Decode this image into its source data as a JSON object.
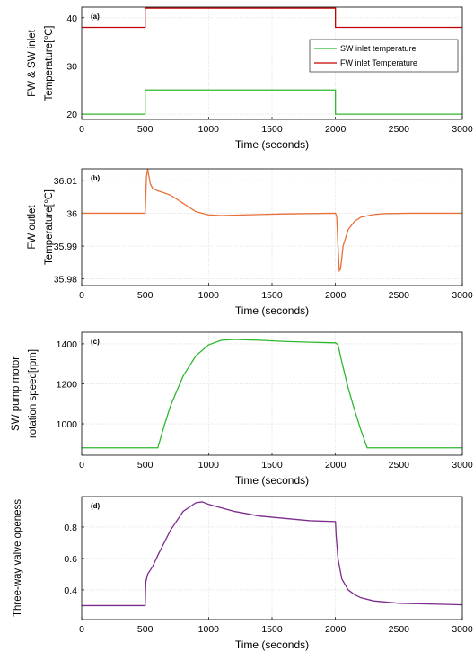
{
  "chart_data": [
    {
      "type": "line",
      "annotation": "(a)",
      "xlabel": "Time (seconds)",
      "ylabel": [
        "FW & SW inlet",
        "Temperature[℃]"
      ],
      "x": [
        0,
        500,
        500,
        2000,
        2000,
        3000
      ],
      "series": [
        {
          "name": "SW inlet temperature",
          "color": "#2db82d",
          "values": [
            20,
            20,
            25,
            25,
            20,
            20
          ]
        },
        {
          "name": "FW inlet Temperature",
          "color": "#c00000",
          "values": [
            38,
            38,
            42,
            42,
            38,
            38
          ]
        }
      ],
      "xlim": [
        0,
        3000
      ],
      "xticks": [
        0,
        500,
        1000,
        1500,
        2000,
        2500,
        3000
      ],
      "ylim": [
        18.9,
        42.2
      ],
      "yticks": [
        20,
        30,
        40
      ],
      "grid": true,
      "legend": "upper-right"
    },
    {
      "type": "line",
      "annotation": "(b)",
      "xlabel": "Time (seconds)",
      "ylabel": [
        "FW outlet",
        "Temperature[℃]"
      ],
      "x": [
        0,
        500,
        505,
        510,
        520,
        540,
        560,
        600,
        650,
        700,
        800,
        900,
        1000,
        1100,
        1200,
        1400,
        1600,
        1800,
        2000,
        2010,
        2020,
        2030,
        2040,
        2060,
        2100,
        2150,
        2200,
        2300,
        2400,
        2600,
        3000
      ],
      "series": [
        {
          "color": "#e8703a",
          "values": [
            36,
            36,
            36.005,
            36.011,
            36.0135,
            36.009,
            36.0075,
            36.0068,
            36.0062,
            36.0055,
            36.003,
            36.0005,
            35.9995,
            35.9993,
            35.9994,
            35.9996,
            35.9998,
            35.9999,
            36,
            35.999,
            35.99,
            35.9825,
            35.983,
            35.99,
            35.995,
            35.9975,
            35.9988,
            35.9996,
            35.9999,
            36,
            36
          ]
        }
      ],
      "xlim": [
        0,
        3000
      ],
      "xticks": [
        0,
        500,
        1000,
        1500,
        2000,
        2500,
        3000
      ],
      "ylim": [
        35.978,
        36.0135
      ],
      "yticks": [
        35.98,
        35.99,
        36,
        36.01
      ],
      "grid": true
    },
    {
      "type": "line",
      "annotation": "(c)",
      "xlabel": "Time (seconds)",
      "ylabel": [
        "SW pump motor",
        "rotation  speed[rpm]"
      ],
      "x": [
        0,
        600,
        650,
        700,
        800,
        900,
        1000,
        1100,
        1200,
        1400,
        1600,
        1800,
        2000,
        2020,
        2050,
        2100,
        2150,
        2200,
        2250,
        3000
      ],
      "series": [
        {
          "color": "#2db82d",
          "values": [
            880,
            880,
            990,
            1090,
            1240,
            1340,
            1395,
            1418,
            1422,
            1418,
            1412,
            1408,
            1405,
            1395,
            1310,
            1180,
            1070,
            970,
            880,
            880
          ]
        }
      ],
      "xlim": [
        0,
        3000
      ],
      "xticks": [
        0,
        500,
        1000,
        1500,
        2000,
        2500,
        3000
      ],
      "ylim": [
        843,
        1458
      ],
      "yticks": [
        1000,
        1200,
        1400
      ],
      "grid": true
    },
    {
      "type": "line",
      "annotation": "(d)",
      "xlabel": "Time (seconds)",
      "ylabel": [
        "Three-way valve openess"
      ],
      "x": [
        0,
        500,
        505,
        520,
        560,
        600,
        700,
        800,
        900,
        950,
        1000,
        1200,
        1400,
        1600,
        1800,
        2000,
        2005,
        2020,
        2050,
        2100,
        2150,
        2200,
        2300,
        2500,
        3000
      ],
      "series": [
        {
          "color": "#7b2c8c",
          "values": [
            0.3,
            0.3,
            0.45,
            0.5,
            0.55,
            0.62,
            0.78,
            0.9,
            0.955,
            0.96,
            0.945,
            0.9,
            0.87,
            0.855,
            0.84,
            0.835,
            0.75,
            0.6,
            0.47,
            0.4,
            0.37,
            0.35,
            0.33,
            0.315,
            0.305
          ]
        }
      ],
      "xlim": [
        0,
        3000
      ],
      "xticks": [
        0,
        500,
        1000,
        1500,
        2000,
        2500,
        3000
      ],
      "ylim": [
        0.211,
        0.994
      ],
      "yticks": [
        0.4,
        0.6,
        0.8
      ],
      "grid": true
    }
  ]
}
